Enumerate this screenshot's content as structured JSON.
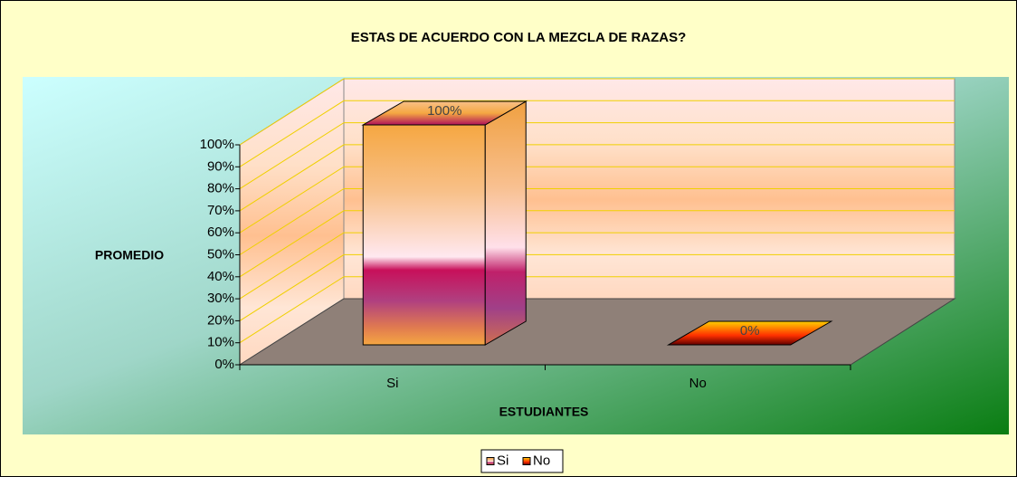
{
  "chart_data": {
    "type": "bar3d",
    "title": "ESTAS DE ACUERDO CON LA MEZCLA DE RAZAS?",
    "y_label": "PROMEDIO",
    "x_label": "ESTUDIANTES",
    "categories": [
      "Si",
      "No"
    ],
    "series": [
      {
        "name": "Si",
        "color": "#f5a742",
        "values": [
          100,
          null
        ],
        "value_labels": [
          "100%",
          null
        ]
      },
      {
        "name": "No",
        "color": "#e8391f",
        "values": [
          null,
          0
        ],
        "value_labels": [
          null,
          "0%"
        ]
      }
    ],
    "ylim": [
      0,
      100
    ],
    "yticks": [
      {
        "value": 0,
        "label": "0%"
      },
      {
        "value": 10,
        "label": "10%"
      },
      {
        "value": 20,
        "label": "20%"
      },
      {
        "value": 30,
        "label": "30%"
      },
      {
        "value": 40,
        "label": "40%"
      },
      {
        "value": 50,
        "label": "50%"
      },
      {
        "value": 60,
        "label": "60%"
      },
      {
        "value": 70,
        "label": "70%"
      },
      {
        "value": 80,
        "label": "80%"
      },
      {
        "value": 90,
        "label": "90%"
      },
      {
        "value": 100,
        "label": "100%"
      }
    ],
    "grid": true,
    "legend": "bottom"
  }
}
